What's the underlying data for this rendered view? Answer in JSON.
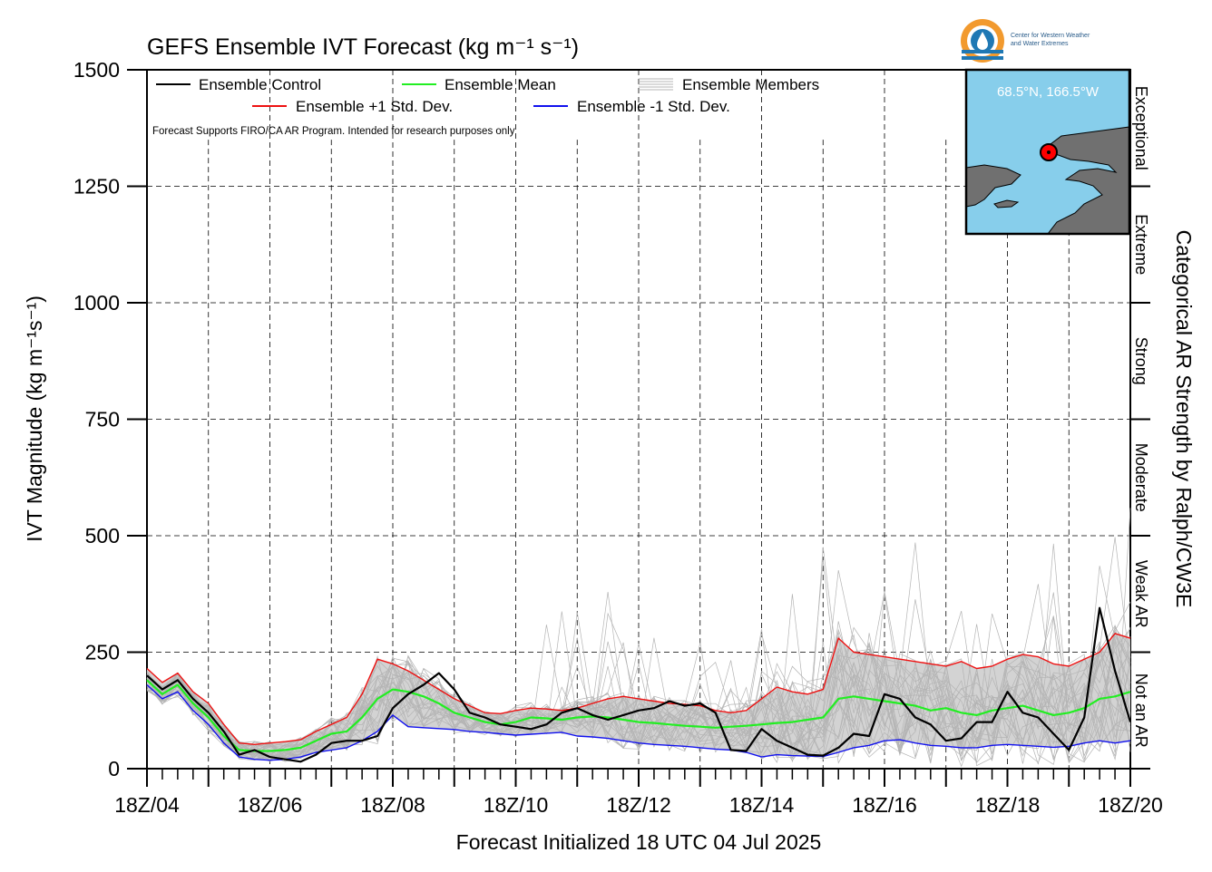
{
  "title": "GEFS Ensemble IVT Forecast (kg m⁻¹ s⁻¹)",
  "logo": {
    "icon": "cw3e-water-drop-logo",
    "line1": "Center for Western Weather",
    "line2": "and Water Extremes"
  },
  "legend": {
    "control": "Ensemble Control",
    "mean": "Ensemble Mean",
    "members": "Ensemble Members",
    "plus_sd": "Ensemble +1 Std. Dev.",
    "minus_sd": "Ensemble -1 Std. Dev."
  },
  "disclaimer": "Forecast Supports FIRO/CA AR Program. Intended for research purposes only",
  "inset": {
    "location": "68.5°N, 166.5°W",
    "marker": "red-location-dot"
  },
  "colors": {
    "control": "#000000",
    "mean": "#22ee22",
    "plus_sd": "#ee1111",
    "minus_sd": "#1111ee",
    "members": "#b4b4b4",
    "spread_fill": "#d3d3d3",
    "ocean": "#87ceeb",
    "land": "#707070"
  },
  "chart_data": {
    "type": "line",
    "title": "GEFS Ensemble IVT Forecast (kg m⁻¹ s⁻¹)",
    "xlabel": "Forecast Initialized 18 UTC 04 Jul 2025",
    "ylabel": "IVT Magnitude (kg m⁻¹s⁻¹)",
    "right_axis_label": "Categorical AR Strength by Ralph/CW3E",
    "ylim": [
      0,
      1500
    ],
    "yticks": [
      0,
      250,
      500,
      750,
      1000,
      1250,
      1500
    ],
    "x_unit": "forecast hour",
    "xlim": [
      0,
      384
    ],
    "xticks": [
      "18Z/04",
      "18Z/06",
      "18Z/08",
      "18Z/10",
      "18Z/12",
      "18Z/14",
      "18Z/16",
      "18Z/18",
      "18Z/20"
    ],
    "categories": [
      {
        "label": "Not an AR",
        "range": [
          0,
          250
        ]
      },
      {
        "label": "Weak AR",
        "range": [
          250,
          500
        ]
      },
      {
        "label": "Moderate",
        "range": [
          500,
          750
        ]
      },
      {
        "label": "Strong",
        "range": [
          750,
          1000
        ]
      },
      {
        "label": "Extreme",
        "range": [
          1000,
          1250
        ]
      },
      {
        "label": "Exceptional",
        "range": [
          1250,
          1500
        ]
      }
    ],
    "grid": true,
    "legend_position": "top-left",
    "series": [
      {
        "name": "Ensemble Control",
        "x": [
          0,
          6,
          12,
          18,
          24,
          30,
          36,
          42,
          48,
          54,
          60,
          66,
          72,
          78,
          84,
          90,
          96,
          102,
          108,
          114,
          120,
          126,
          132,
          138,
          144,
          150,
          156,
          162,
          168,
          174,
          180,
          186,
          192,
          198,
          204,
          210,
          216,
          222,
          228,
          234,
          240,
          246,
          252,
          258,
          264,
          270,
          276,
          282,
          288,
          294,
          300,
          306,
          312,
          318,
          324,
          330,
          336,
          342,
          348,
          354,
          360,
          366,
          372,
          378,
          384
        ],
        "values": [
          200,
          170,
          190,
          150,
          120,
          80,
          30,
          40,
          25,
          20,
          15,
          30,
          55,
          60,
          60,
          70,
          130,
          160,
          180,
          205,
          170,
          120,
          110,
          95,
          90,
          85,
          95,
          120,
          130,
          115,
          105,
          115,
          125,
          130,
          145,
          135,
          140,
          120,
          40,
          38,
          85,
          60,
          45,
          30,
          28,
          45,
          75,
          70,
          160,
          150,
          110,
          95,
          60,
          65,
          100,
          100,
          165,
          120,
          110,
          75,
          40,
          110,
          345,
          210,
          100
        ]
      },
      {
        "name": "Ensemble Mean",
        "x": [
          0,
          6,
          12,
          18,
          24,
          30,
          36,
          42,
          48,
          54,
          60,
          66,
          72,
          78,
          84,
          90,
          96,
          102,
          108,
          114,
          120,
          126,
          132,
          138,
          144,
          150,
          156,
          162,
          168,
          174,
          180,
          186,
          192,
          198,
          204,
          210,
          216,
          222,
          228,
          234,
          240,
          246,
          252,
          258,
          264,
          270,
          276,
          282,
          288,
          294,
          300,
          306,
          312,
          318,
          324,
          330,
          336,
          342,
          348,
          354,
          360,
          366,
          372,
          378,
          384
        ],
        "values": [
          190,
          160,
          180,
          140,
          110,
          70,
          40,
          38,
          38,
          40,
          45,
          60,
          75,
          80,
          110,
          150,
          170,
          165,
          155,
          140,
          120,
          110,
          100,
          95,
          100,
          110,
          108,
          105,
          110,
          112,
          110,
          105,
          100,
          98,
          95,
          92,
          90,
          88,
          90,
          92,
          95,
          98,
          100,
          105,
          110,
          150,
          155,
          150,
          145,
          140,
          135,
          125,
          130,
          120,
          115,
          125,
          130,
          135,
          125,
          115,
          120,
          130,
          150,
          155,
          165
        ]
      },
      {
        "name": "Ensemble +1 Std. Dev.",
        "x": [
          0,
          6,
          12,
          18,
          24,
          30,
          36,
          42,
          48,
          54,
          60,
          66,
          72,
          78,
          84,
          90,
          96,
          102,
          108,
          114,
          120,
          126,
          132,
          138,
          144,
          150,
          156,
          162,
          168,
          174,
          180,
          186,
          192,
          198,
          204,
          210,
          216,
          222,
          228,
          234,
          240,
          246,
          252,
          258,
          264,
          270,
          276,
          282,
          288,
          294,
          300,
          306,
          312,
          318,
          324,
          330,
          336,
          342,
          348,
          354,
          360,
          366,
          372,
          378,
          384
        ],
        "values": [
          215,
          185,
          205,
          165,
          140,
          95,
          55,
          52,
          55,
          58,
          62,
          80,
          95,
          110,
          160,
          235,
          225,
          210,
          190,
          170,
          150,
          135,
          120,
          118,
          125,
          130,
          128,
          125,
          130,
          140,
          150,
          155,
          150,
          145,
          140,
          138,
          135,
          125,
          120,
          125,
          150,
          175,
          165,
          160,
          170,
          280,
          250,
          245,
          240,
          235,
          230,
          225,
          220,
          230,
          215,
          220,
          235,
          245,
          240,
          225,
          220,
          235,
          250,
          290,
          280
        ]
      },
      {
        "name": "Ensemble -1 Std. Dev.",
        "x": [
          0,
          6,
          12,
          18,
          24,
          30,
          36,
          42,
          48,
          54,
          60,
          66,
          72,
          78,
          84,
          90,
          96,
          102,
          108,
          114,
          120,
          126,
          132,
          138,
          144,
          150,
          156,
          162,
          168,
          174,
          180,
          186,
          192,
          198,
          204,
          210,
          216,
          222,
          228,
          234,
          240,
          246,
          252,
          258,
          264,
          270,
          276,
          282,
          288,
          294,
          300,
          306,
          312,
          318,
          324,
          330,
          336,
          342,
          348,
          354,
          360,
          366,
          372,
          378,
          384
        ],
        "values": [
          180,
          150,
          165,
          125,
          95,
          55,
          25,
          20,
          18,
          20,
          25,
          35,
          40,
          45,
          60,
          80,
          115,
          90,
          88,
          86,
          84,
          80,
          78,
          75,
          72,
          74,
          76,
          78,
          70,
          68,
          65,
          60,
          55,
          52,
          50,
          48,
          45,
          42,
          40,
          35,
          25,
          30,
          28,
          27,
          26,
          35,
          45,
          50,
          60,
          62,
          55,
          50,
          48,
          45,
          45,
          50,
          52,
          50,
          48,
          46,
          48,
          55,
          60,
          55,
          60
        ]
      }
    ]
  }
}
